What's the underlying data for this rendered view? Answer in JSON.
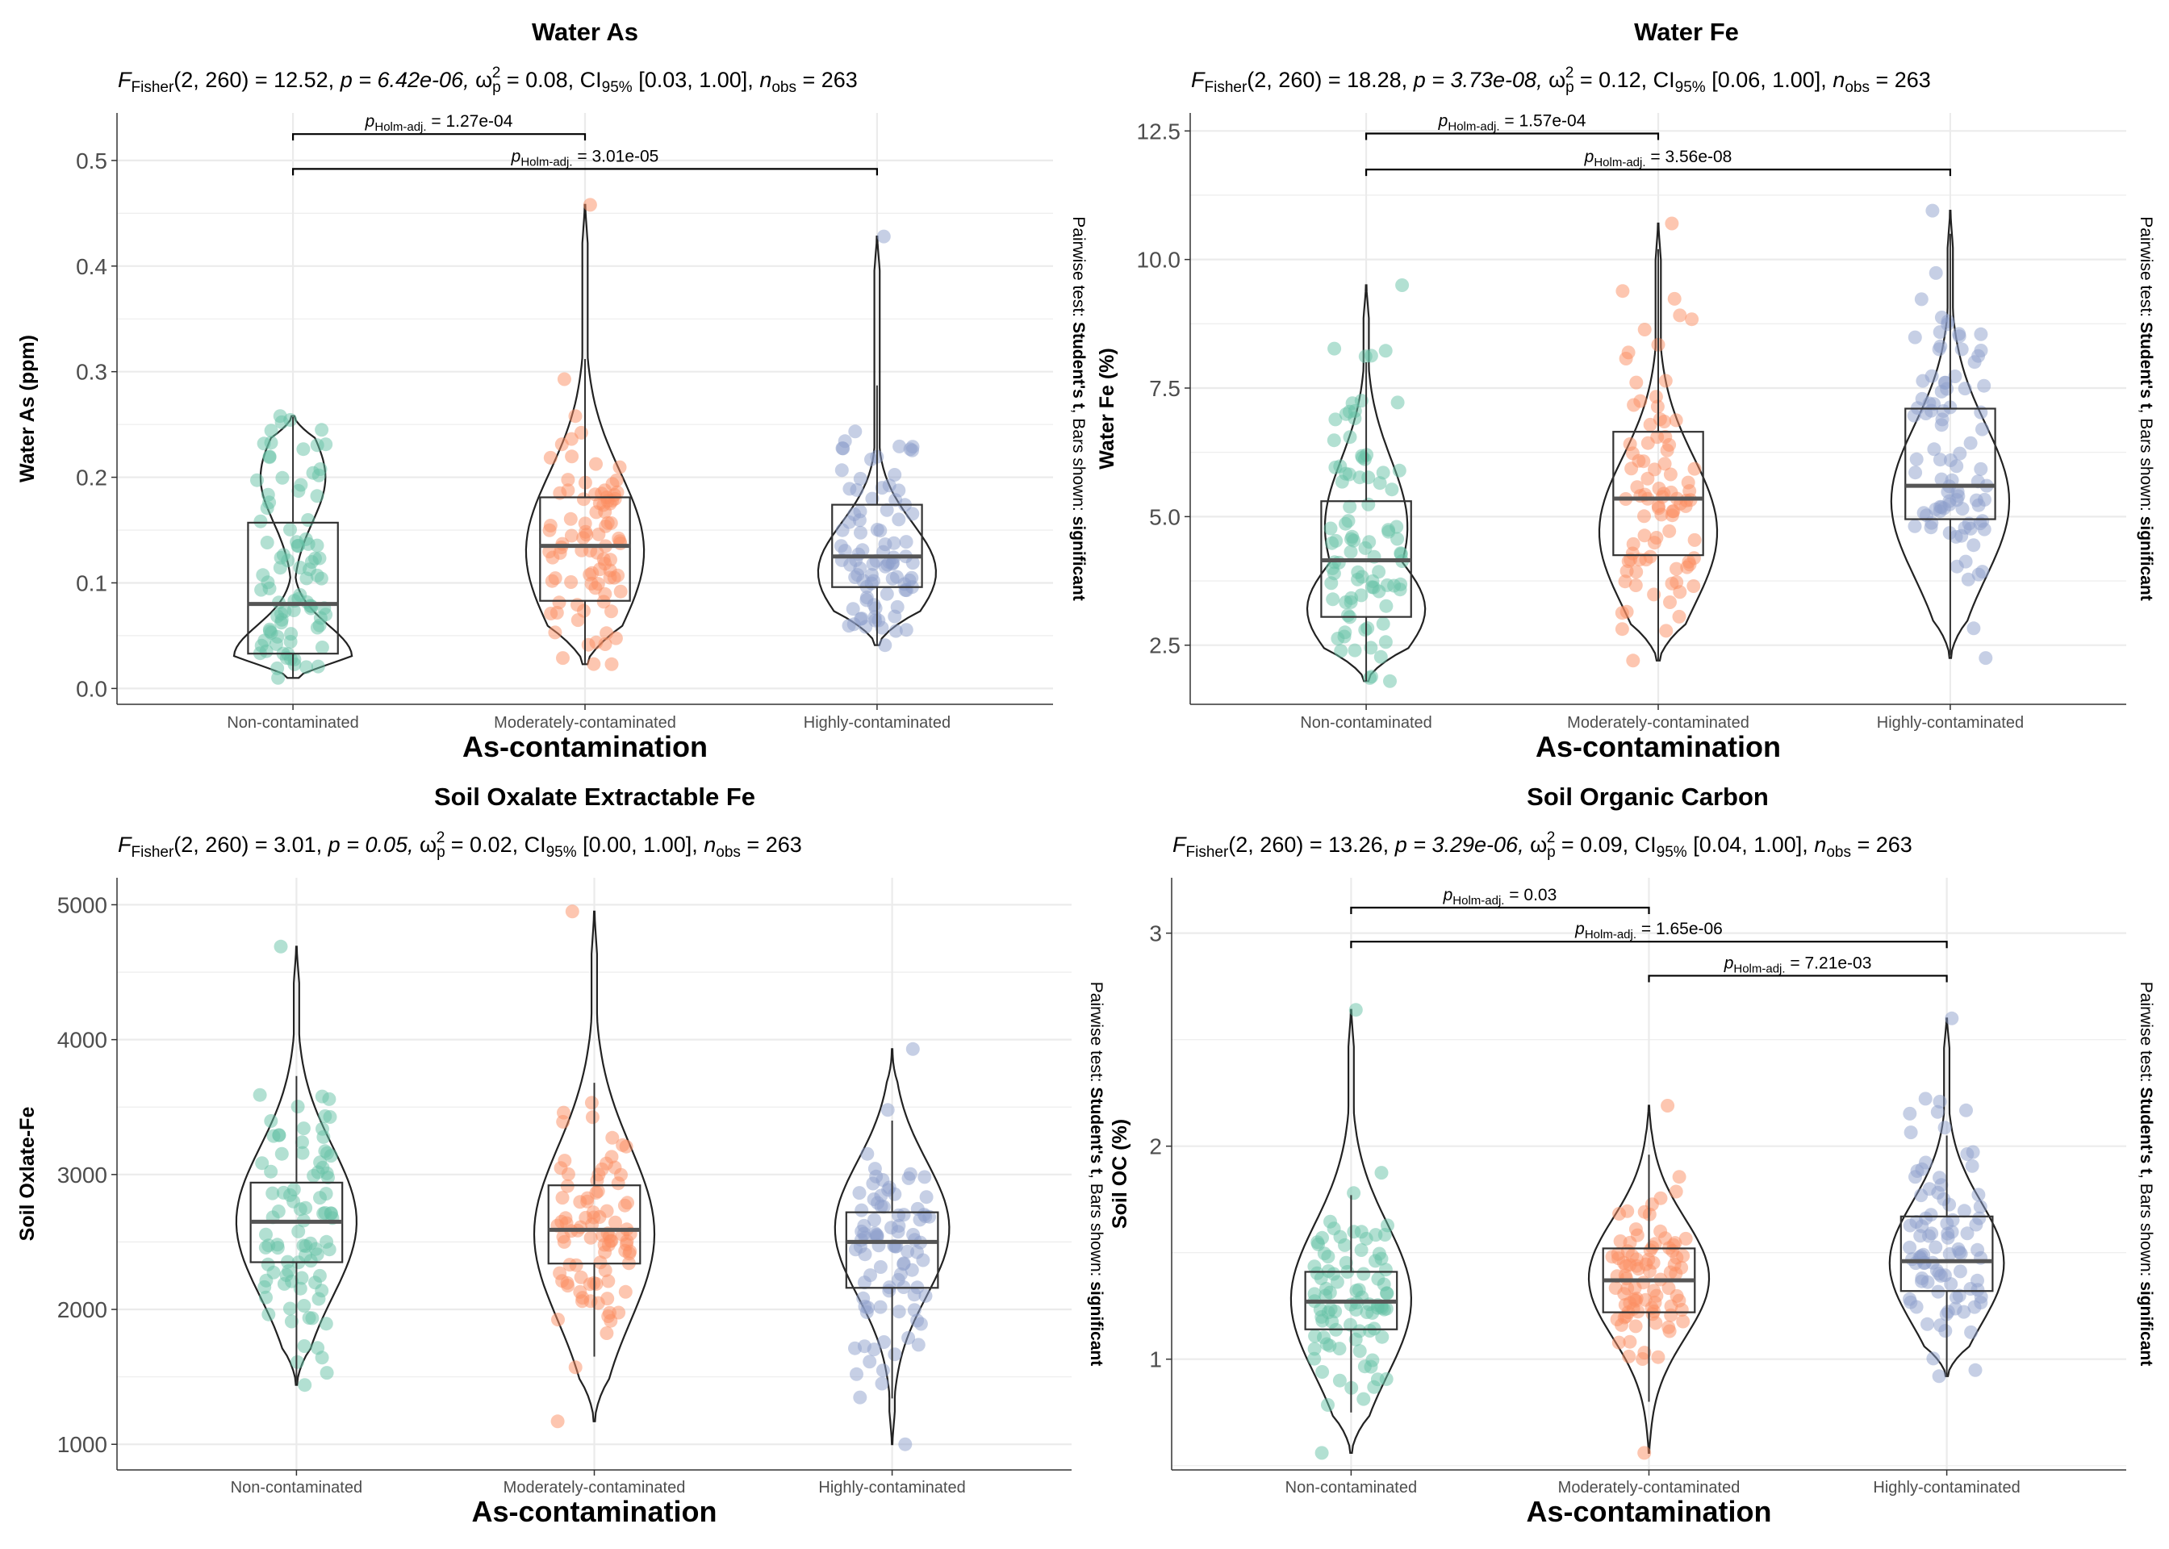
{
  "colors": {
    "Non-contaminated": "#66c2a5",
    "Moderately-contaminated": "#fc8d62",
    "Highly-contaminated": "#8da0cb",
    "grid": "#ebebeb",
    "outline": "#333333"
  },
  "chart_data": [
    {
      "type": "violin-box-jitter",
      "title": "Water As",
      "stat": {
        "prefix": "F",
        "sub": "Fisher",
        "args": "(2, 260) = 12.52,",
        "p": "p = 6.42e-06,",
        "omega": "= 0.08,",
        "ci": "[0.03, 1.00],",
        "nobs": "= 263"
      },
      "xlabel": "As-contamination",
      "ylabel": "Water As (ppm)",
      "categories": [
        "Non-contaminated",
        "Moderately-contaminated",
        "Highly-contaminated"
      ],
      "ylim": [
        -0.015,
        0.545
      ],
      "yticks": [
        0.0,
        0.1,
        0.2,
        0.3,
        0.4,
        0.5
      ],
      "yticklabels": [
        "0.0",
        "0.1",
        "0.2",
        "0.3",
        "0.4",
        "0.5"
      ],
      "box": [
        {
          "q1": 0.033,
          "median": 0.08,
          "q3": 0.157,
          "whisker_low": 0.01,
          "whisker_high": 0.257
        },
        {
          "q1": 0.083,
          "median": 0.135,
          "q3": 0.181,
          "whisker_low": 0.023,
          "whisker_high": 0.312
        },
        {
          "q1": 0.096,
          "median": 0.125,
          "q3": 0.174,
          "whisker_low": 0.041,
          "whisker_high": 0.287
        }
      ],
      "violin": [
        {
          "min": 0.01,
          "max": 0.258,
          "peaks": [
            [
              0.03,
              1.0
            ],
            [
              0.2,
              0.55
            ]
          ]
        },
        {
          "min": 0.023,
          "max": 0.458,
          "peaks": [
            [
              0.13,
              1.0
            ]
          ]
        },
        {
          "min": 0.041,
          "max": 0.428,
          "peaks": [
            [
              0.11,
              1.0
            ]
          ]
        }
      ],
      "pairs": [
        {
          "label_prefix": "p",
          "label_sub": "Holm-adj.",
          "label_value": "= 1.27e-04",
          "from": 0,
          "to": 1,
          "y": 0.525
        },
        {
          "label_prefix": "p",
          "label_sub": "Holm-adj.",
          "label_value": "= 3.01e-05",
          "from": 0,
          "to": 2,
          "y": 0.492
        }
      ],
      "caption": {
        "text1": "Pairwise test: ",
        "bold1": "Student's t",
        "text2": ", Bars shown: ",
        "bold2": "significant"
      }
    },
    {
      "type": "violin-box-jitter",
      "title": "Water Fe",
      "stat": {
        "prefix": "F",
        "sub": "Fisher",
        "args": "(2, 260) = 18.28,",
        "p": "p = 3.73e-08,",
        "omega": "= 0.12,",
        "ci": "[0.06, 1.00],",
        "nobs": "= 263"
      },
      "xlabel": "As-contamination",
      "ylabel": "Water Fe (%)",
      "categories": [
        "Non-contaminated",
        "Moderately-contaminated",
        "Highly-contaminated"
      ],
      "ylim": [
        1.35,
        12.85
      ],
      "yticks": [
        2.5,
        5.0,
        7.5,
        10.0,
        12.5
      ],
      "yticklabels": [
        "2.5",
        "5.0",
        "7.5",
        "10.0",
        "12.5"
      ],
      "box": [
        {
          "q1": 3.05,
          "median": 4.15,
          "q3": 5.3,
          "whisker_low": 1.8,
          "whisker_high": 8.0
        },
        {
          "q1": 4.25,
          "median": 5.35,
          "q3": 6.65,
          "whisker_low": 2.2,
          "whisker_high": 10.2
        },
        {
          "q1": 4.95,
          "median": 5.6,
          "q3": 7.1,
          "whisker_low": 2.3,
          "whisker_high": 10.5
        }
      ],
      "violin": [
        {
          "min": 1.8,
          "max": 9.5,
          "peaks": [
            [
              3.2,
              1.0
            ],
            [
              4.8,
              0.7
            ]
          ]
        },
        {
          "min": 2.2,
          "max": 10.7,
          "peaks": [
            [
              4.7,
              1.0
            ]
          ]
        },
        {
          "min": 2.25,
          "max": 10.95,
          "peaks": [
            [
              5.3,
              1.0
            ]
          ]
        }
      ],
      "pairs": [
        {
          "label_prefix": "p",
          "label_sub": "Holm-adj.",
          "label_value": "= 1.57e-04",
          "from": 0,
          "to": 1,
          "y": 12.45
        },
        {
          "label_prefix": "p",
          "label_sub": "Holm-adj.",
          "label_value": "= 3.56e-08",
          "from": 0,
          "to": 2,
          "y": 11.75
        }
      ],
      "caption": {
        "text1": "Pairwise test: ",
        "bold1": "Student's t",
        "text2": ", Bars shown: ",
        "bold2": "significant"
      }
    },
    {
      "type": "violin-box-jitter",
      "title": "Soil Oxalate Extractable Fe",
      "stat": {
        "prefix": "F",
        "sub": "Fisher",
        "args": "(2, 260) = 3.01,",
        "p": "p = 0.05,",
        "omega": "= 0.02,",
        "ci": "[0.00, 1.00],",
        "nobs": "= 263"
      },
      "xlabel": "As-contamination",
      "ylabel": "Soil Oxlate-Fe",
      "categories": [
        "Non-contaminated",
        "Moderately-contaminated",
        "Highly-contaminated"
      ],
      "ylim": [
        810,
        5200
      ],
      "yticks": [
        1000,
        2000,
        3000,
        4000,
        5000
      ],
      "yticklabels": [
        "1000",
        "2000",
        "3000",
        "4000",
        "5000"
      ],
      "box": [
        {
          "q1": 2350,
          "median": 2650,
          "q3": 2940,
          "whisker_low": 1450,
          "whisker_high": 3730
        },
        {
          "q1": 2340,
          "median": 2590,
          "q3": 2920,
          "whisker_low": 1650,
          "whisker_high": 3680
        },
        {
          "q1": 2160,
          "median": 2500,
          "q3": 2720,
          "whisker_low": 1340,
          "whisker_high": 3400
        }
      ],
      "violin": [
        {
          "min": 1440,
          "max": 4690,
          "peaks": [
            [
              2650,
              1.0
            ]
          ]
        },
        {
          "min": 1170,
          "max": 4950,
          "peaks": [
            [
              2560,
              1.0
            ]
          ]
        },
        {
          "min": 1000,
          "max": 3930,
          "peaks": [
            [
              2600,
              0.95
            ]
          ]
        }
      ],
      "pairs": [],
      "caption": {
        "text1": "Pairwise test: ",
        "bold1": "Student's t",
        "text2": ", Bars shown: ",
        "bold2": "significant"
      }
    },
    {
      "type": "violin-box-jitter",
      "title": "Soil Organic Carbon",
      "stat": {
        "prefix": "F",
        "sub": "Fisher",
        "args": "(2, 260) = 13.26,",
        "p": "p = 3.29e-06,",
        "omega": "= 0.09,",
        "ci": "[0.04, 1.00],",
        "nobs": "= 263"
      },
      "xlabel": "As-contamination",
      "ylabel": "Soil OC (%)",
      "categories": [
        "Non-contaminated",
        "Moderately-contaminated",
        "Highly-contaminated"
      ],
      "ylim": [
        0.48,
        3.26
      ],
      "yticks": [
        1,
        2,
        3
      ],
      "yticklabels": [
        "1",
        "2",
        "3"
      ],
      "box": [
        {
          "q1": 1.14,
          "median": 1.27,
          "q3": 1.41,
          "whisker_low": 0.75,
          "whisker_high": 1.77
        },
        {
          "q1": 1.22,
          "median": 1.37,
          "q3": 1.52,
          "whisker_low": 0.8,
          "whisker_high": 1.96
        },
        {
          "q1": 1.32,
          "median": 1.46,
          "q3": 1.67,
          "whisker_low": 0.92,
          "whisker_high": 2.05
        }
      ],
      "violin": [
        {
          "min": 0.56,
          "max": 2.64,
          "peaks": [
            [
              1.28,
              1.0
            ]
          ]
        },
        {
          "min": 0.56,
          "max": 2.19,
          "peaks": [
            [
              1.38,
              1.0
            ]
          ]
        },
        {
          "min": 0.92,
          "max": 2.6,
          "peaks": [
            [
              1.45,
              0.95
            ]
          ]
        }
      ],
      "pairs": [
        {
          "label_prefix": "p",
          "label_sub": "Holm-adj.",
          "label_value": "= 0.03",
          "from": 0,
          "to": 1,
          "y": 3.12
        },
        {
          "label_prefix": "p",
          "label_sub": "Holm-adj.",
          "label_value": "= 1.65e-06",
          "from": 0,
          "to": 2,
          "y": 2.96
        },
        {
          "label_prefix": "p",
          "label_sub": "Holm-adj.",
          "label_value": "= 7.21e-03",
          "from": 1,
          "to": 2,
          "y": 2.8
        }
      ],
      "caption": {
        "text1": "Pairwise test: ",
        "bold1": "Student's t",
        "text2": ", Bars shown: ",
        "bold2": "significant"
      }
    }
  ]
}
